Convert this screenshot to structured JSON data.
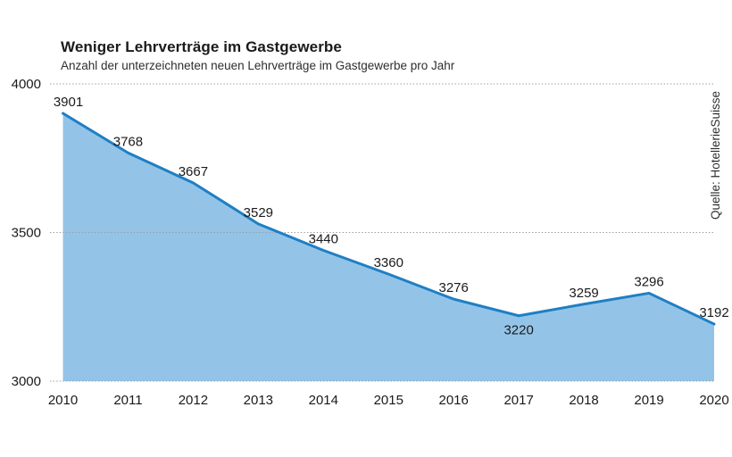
{
  "header": {
    "title": "Weniger Lehrverträge im Gastgewerbe",
    "subtitle": "Anzahl der unterzeichneten neuen Lehrverträge im Gastgewerbe pro Jahr"
  },
  "source": "Quelle: HotellerieSuisse",
  "chart_data": {
    "type": "area",
    "title": "Weniger Lehrverträge im Gastgewerbe",
    "subtitle": "Anzahl der unterzeichneten neuen Lehrverträge im Gastgewerbe pro Jahr",
    "categories": [
      "2010",
      "2011",
      "2012",
      "2013",
      "2014",
      "2015",
      "2016",
      "2017",
      "2018",
      "2019",
      "2020"
    ],
    "values": [
      3901,
      3768,
      3667,
      3529,
      3440,
      3360,
      3276,
      3220,
      3259,
      3296,
      3192
    ],
    "xlabel": "",
    "ylabel": "",
    "ylim": [
      3000,
      4000
    ],
    "yticks": [
      4000,
      3500,
      3000
    ],
    "grid": "horizontal-dotted",
    "legend": "none",
    "data_labels": true,
    "source": "Quelle: HotellerieSuisse",
    "colors": {
      "line": "#1f7fc4",
      "fill": "#93c4e8",
      "grid": "#9b9b9b",
      "text": "#1a1a1a"
    }
  }
}
